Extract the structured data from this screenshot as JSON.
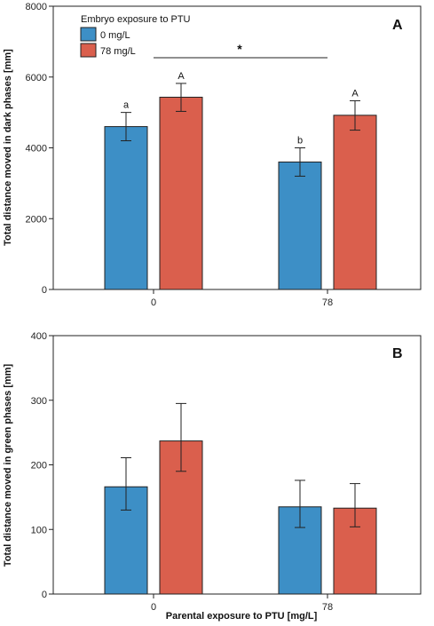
{
  "colors": {
    "blue": "#3d8fc6",
    "red": "#da5f4d",
    "axis": "#222222"
  },
  "chart_data": [
    {
      "type": "bar",
      "panel_label": "A",
      "ylabel": "Total distance moved in dark phases [mm]",
      "xlabel": "",
      "ylim": [
        0,
        8000
      ],
      "yticks": [
        0,
        2000,
        4000,
        6000,
        8000
      ],
      "categories": [
        "0",
        "78"
      ],
      "legend": {
        "title": "Embryo exposure to PTU",
        "placement": "top-left",
        "entries": [
          {
            "label": "0 mg/L",
            "color": "#3d8fc6"
          },
          {
            "label": "78 mg/L",
            "color": "#da5f4d"
          }
        ]
      },
      "series": [
        {
          "name": "0 mg/L",
          "color": "#3d8fc6",
          "values": [
            4600,
            3600
          ],
          "err_low": [
            4200,
            3200
          ],
          "err_high": [
            5000,
            4000
          ],
          "labels": [
            "a",
            "b"
          ]
        },
        {
          "name": "78 mg/L",
          "color": "#da5f4d",
          "values": [
            5430,
            4920
          ],
          "err_low": [
            5030,
            4500
          ],
          "err_high": [
            5820,
            5330
          ],
          "labels": [
            "A",
            "A"
          ]
        }
      ],
      "significance": {
        "label": "*",
        "y": 6500
      }
    },
    {
      "type": "bar",
      "panel_label": "B",
      "ylabel": "Total distance moved in green phases [mm]",
      "xlabel": "Parental exposure to PTU [mg/L]",
      "ylim": [
        0,
        400
      ],
      "yticks": [
        0,
        100,
        200,
        300,
        400
      ],
      "categories": [
        "0",
        "78"
      ],
      "series": [
        {
          "name": "0 mg/L",
          "color": "#3d8fc6",
          "values": [
            166,
            135
          ],
          "err_low": [
            130,
            103
          ],
          "err_high": [
            211,
            176
          ],
          "labels": [
            "",
            ""
          ]
        },
        {
          "name": "78 mg/L",
          "color": "#da5f4d",
          "values": [
            237,
            133
          ],
          "err_low": [
            190,
            104
          ],
          "err_high": [
            295,
            171
          ],
          "labels": [
            "",
            ""
          ]
        }
      ]
    }
  ]
}
